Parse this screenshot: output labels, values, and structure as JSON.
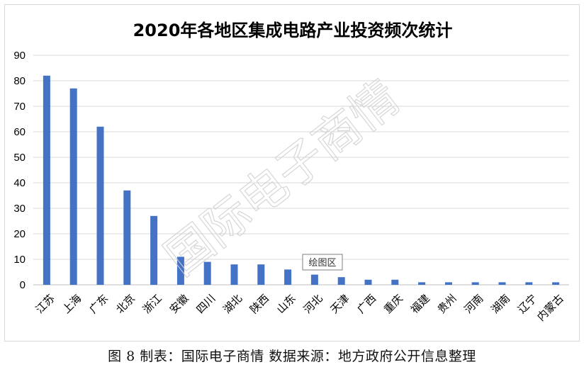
{
  "chart_data": {
    "type": "bar",
    "title": "2020年各地区集成电路产业投资频次统计",
    "categories": [
      "江苏",
      "上海",
      "广东",
      "北京",
      "浙江",
      "安徽",
      "四川",
      "湖北",
      "陕西",
      "山东",
      "河北",
      "天津",
      "广西",
      "重庆",
      "福建",
      "贵州",
      "河南",
      "湖南",
      "辽宁",
      "内蒙古"
    ],
    "values": [
      82,
      77,
      62,
      37,
      27,
      11,
      9,
      8,
      8,
      6,
      4,
      3,
      2,
      2,
      1,
      1,
      1,
      1,
      1,
      1
    ],
    "ylim": [
      0,
      90
    ],
    "yticks": [
      0,
      10,
      20,
      30,
      40,
      50,
      60,
      70,
      80,
      90
    ],
    "grid": true,
    "bar_color": "#4472c4"
  },
  "watermark": "国际电子商情",
  "tooltip": "绘图区",
  "caption": "图 8  制表：国际电子商情  数据来源：地方政府公开信息整理"
}
